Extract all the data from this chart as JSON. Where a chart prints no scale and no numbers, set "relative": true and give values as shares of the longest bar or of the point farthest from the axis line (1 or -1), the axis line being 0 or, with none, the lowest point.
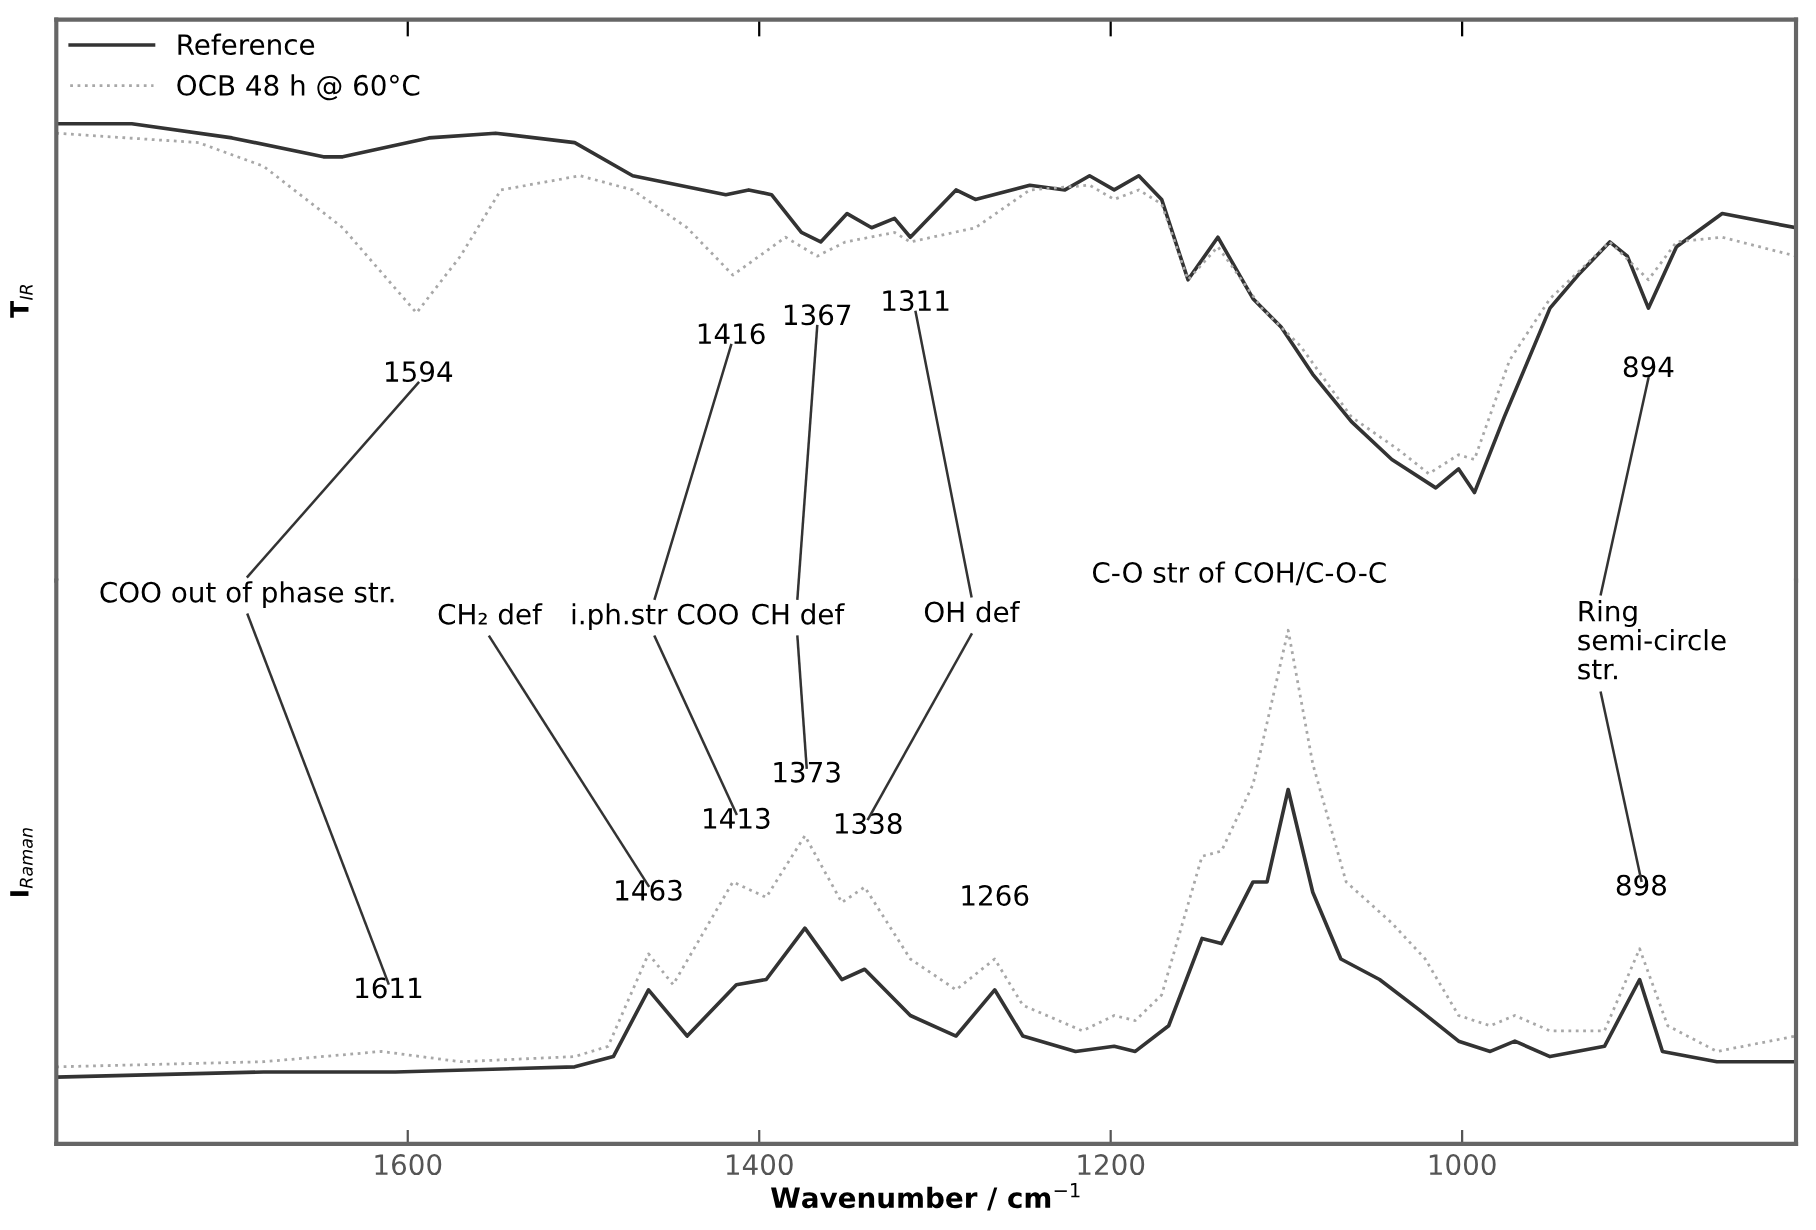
{
  "chart_data": [
    {
      "type": "line",
      "relative": true,
      "ylabel": "T$_{IR}$",
      "xlim": [
        1800,
        810
      ],
      "xticks": [
        1600,
        1400,
        1200,
        1000
      ],
      "tick_labels": false,
      "grid": false,
      "legend": "top left",
      "series": [
        {
          "name": "Reference",
          "color": "#333333",
          "line_style": "solid",
          "x": [
            1800,
            1757,
            1700,
            1648,
            1637,
            1588,
            1550,
            1505,
            1472,
            1419,
            1406,
            1393,
            1376,
            1365,
            1350,
            1336,
            1323,
            1314,
            1288,
            1277,
            1246,
            1226,
            1212,
            1198,
            1184,
            1171,
            1156,
            1139,
            1119,
            1103,
            1085,
            1063,
            1040,
            1015,
            1002,
            993,
            976,
            950,
            934,
            916,
            906,
            894,
            878,
            852,
            810
          ],
          "values": [
            -0.22,
            -0.22,
            -0.25,
            -0.29,
            -0.29,
            -0.25,
            -0.24,
            -0.26,
            -0.33,
            -0.37,
            -0.36,
            -0.37,
            -0.45,
            -0.47,
            -0.41,
            -0.44,
            -0.42,
            -0.46,
            -0.36,
            -0.38,
            -0.35,
            -0.36,
            -0.33,
            -0.36,
            -0.33,
            -0.38,
            -0.55,
            -0.46,
            -0.59,
            -0.65,
            -0.75,
            -0.85,
            -0.93,
            -0.99,
            -0.95,
            -1.0,
            -0.84,
            -0.61,
            -0.54,
            -0.47,
            -0.5,
            -0.61,
            -0.48,
            -0.41,
            -0.44
          ]
        },
        {
          "name": "OCB 48 h @ 60°C",
          "color": "#a8a8a8",
          "line_style": "dotted",
          "x": [
            1800,
            1719,
            1682,
            1637,
            1595,
            1570,
            1547,
            1502,
            1472,
            1441,
            1415,
            1385,
            1367,
            1351,
            1323,
            1314,
            1277,
            1246,
            1212,
            1198,
            1184,
            1171,
            1156,
            1139,
            1114,
            1092,
            1063,
            1036,
            1019,
            1002,
            993,
            973,
            950,
            916,
            894,
            878,
            852,
            810
          ],
          "values": [
            -0.24,
            -0.26,
            -0.31,
            -0.44,
            -0.62,
            -0.5,
            -0.36,
            -0.33,
            -0.36,
            -0.44,
            -0.54,
            -0.46,
            -0.5,
            -0.47,
            -0.45,
            -0.47,
            -0.44,
            -0.36,
            -0.35,
            -0.38,
            -0.36,
            -0.39,
            -0.55,
            -0.48,
            -0.61,
            -0.69,
            -0.84,
            -0.91,
            -0.96,
            -0.92,
            -0.93,
            -0.72,
            -0.59,
            -0.47,
            -0.55,
            -0.47,
            -0.46,
            -0.5
          ]
        }
      ],
      "annotations": [
        {
          "text": "1594",
          "x": 1594,
          "y": -0.62
        },
        {
          "text": "1416",
          "x": 1416,
          "y": -0.54
        },
        {
          "text": "1367",
          "x": 1367,
          "y": -0.5
        },
        {
          "text": "1311",
          "x": 1311,
          "y": -0.47
        },
        {
          "text": "894",
          "x": 894,
          "y": -0.61
        }
      ]
    },
    {
      "type": "line",
      "relative": true,
      "ylabel": "I$_{Raman}$",
      "xlabel": "Wavenumber / cm$^{−1}$",
      "xlim": [
        1800,
        810
      ],
      "xticks": [
        1600,
        1400,
        1200,
        1000
      ],
      "tick_labels": "x",
      "grid": false,
      "legend": false,
      "series": [
        {
          "color": "#333333",
          "line_style": "solid",
          "x": [
            1800,
            1682,
            1607,
            1505,
            1483,
            1463,
            1441,
            1413,
            1396,
            1374,
            1353,
            1340,
            1314,
            1288,
            1266,
            1250,
            1220,
            1198,
            1186,
            1167,
            1148,
            1137,
            1119,
            1111,
            1099,
            1085,
            1069,
            1047,
            1024,
            1002,
            984,
            970,
            950,
            919,
            899,
            886,
            855,
            810
          ],
          "values": [
            0.13,
            0.14,
            0.14,
            0.15,
            0.17,
            0.3,
            0.21,
            0.31,
            0.32,
            0.42,
            0.32,
            0.34,
            0.25,
            0.21,
            0.3,
            0.21,
            0.18,
            0.19,
            0.18,
            0.23,
            0.4,
            0.39,
            0.51,
            0.51,
            0.69,
            0.49,
            0.36,
            0.32,
            0.26,
            0.2,
            0.18,
            0.2,
            0.17,
            0.19,
            0.32,
            0.18,
            0.16,
            0.16
          ]
        },
        {
          "color": "#a8a8a8",
          "line_style": "dotted",
          "x": [
            1800,
            1682,
            1615,
            1570,
            1505,
            1486,
            1463,
            1449,
            1415,
            1396,
            1374,
            1353,
            1340,
            1314,
            1288,
            1266,
            1250,
            1216,
            1198,
            1186,
            1171,
            1148,
            1137,
            1119,
            1099,
            1085,
            1066,
            1040,
            1021,
            1002,
            984,
            970,
            950,
            919,
            899,
            883,
            855,
            810
          ],
          "values": [
            0.15,
            0.16,
            0.18,
            0.16,
            0.17,
            0.19,
            0.37,
            0.31,
            0.51,
            0.48,
            0.6,
            0.47,
            0.5,
            0.36,
            0.3,
            0.36,
            0.27,
            0.22,
            0.25,
            0.24,
            0.29,
            0.56,
            0.57,
            0.7,
            1.0,
            0.74,
            0.51,
            0.43,
            0.36,
            0.25,
            0.23,
            0.25,
            0.22,
            0.22,
            0.38,
            0.23,
            0.18,
            0.21
          ]
        }
      ],
      "annotations": [
        "COO out of phase str.",
        "CH₂ def",
        "i.ph.str COO",
        "CH def",
        "OH def",
        "C-O str of COH/C-O-C",
        "Ring\nsemi-circle\nstr.",
        {
          "text": "1611",
          "x": 1611,
          "y": 0.18
        },
        {
          "text": "1463",
          "x": 1463,
          "y": 0.37
        },
        {
          "text": "1413",
          "x": 1413,
          "y": 0.51
        },
        {
          "text": "1373",
          "x": 1373,
          "y": 0.6
        },
        {
          "text": "1338",
          "x": 1338,
          "y": 0.5
        },
        {
          "text": "1266",
          "x": 1266,
          "y": 0.36
        },
        {
          "text": "898",
          "x": 898,
          "y": 0.38
        }
      ]
    }
  ]
}
